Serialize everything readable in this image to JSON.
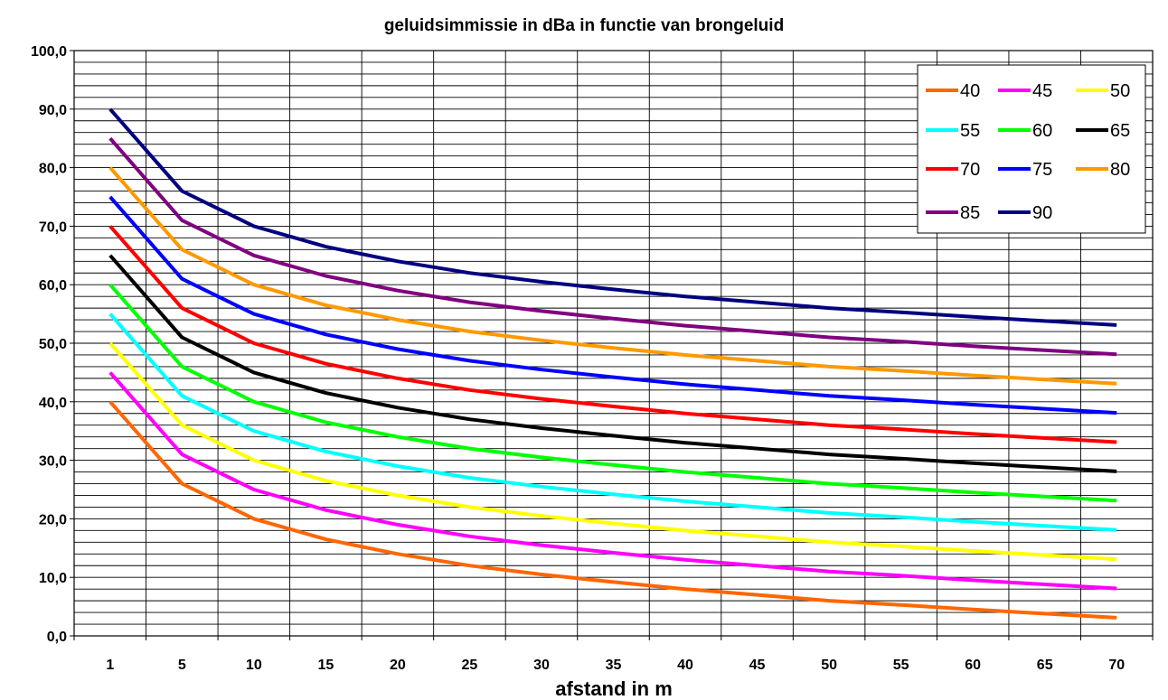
{
  "chart_data": {
    "type": "line",
    "title": "geluidsimmissie in dBa in functie van brongeluid",
    "xlabel": "afstand in m",
    "ylabel": "",
    "ylim": [
      0,
      100
    ],
    "y_tick_labels": [
      "0,0",
      "10,0",
      "20,0",
      "30,0",
      "40,0",
      "50,0",
      "60,0",
      "70,0",
      "80,0",
      "90,0",
      "100,0"
    ],
    "categories": [
      "1",
      "5",
      "10",
      "15",
      "20",
      "25",
      "30",
      "35",
      "40",
      "45",
      "50",
      "55",
      "60",
      "65",
      "70"
    ],
    "grid": true,
    "legend_position": "top-right",
    "series": [
      {
        "name": "40",
        "color": "#FF6600",
        "values": [
          40,
          26,
          20,
          16.5,
          14,
          12,
          10.5,
          9.2,
          8,
          7,
          6,
          5.3,
          4.5,
          3.8,
          3.1
        ]
      },
      {
        "name": "45",
        "color": "#FF00FF",
        "values": [
          45,
          31,
          25,
          21.5,
          19,
          17,
          15.5,
          14.2,
          13,
          12,
          11,
          10.3,
          9.5,
          8.8,
          8.1
        ]
      },
      {
        "name": "50",
        "color": "#FFFF00",
        "values": [
          50,
          36,
          30,
          26.5,
          24,
          22,
          20.5,
          19.2,
          18,
          17,
          16,
          15.3,
          14.5,
          13.8,
          13.1
        ]
      },
      {
        "name": "55",
        "color": "#00FFFF",
        "values": [
          55,
          41,
          35,
          31.5,
          29,
          27,
          25.5,
          24.2,
          23,
          22,
          21,
          20.3,
          19.5,
          18.8,
          18.1
        ]
      },
      {
        "name": "60",
        "color": "#00FF00",
        "values": [
          60,
          46,
          40,
          36.5,
          34,
          32,
          30.5,
          29.2,
          28,
          27,
          26,
          25.3,
          24.5,
          23.8,
          23.1
        ]
      },
      {
        "name": "65",
        "color": "#000000",
        "values": [
          65,
          51,
          45,
          41.5,
          39,
          37,
          35.5,
          34.2,
          33,
          32,
          31,
          30.3,
          29.5,
          28.8,
          28.1
        ]
      },
      {
        "name": "70",
        "color": "#FF0000",
        "values": [
          70,
          56,
          50,
          46.5,
          44,
          42,
          40.5,
          39.2,
          38,
          37,
          36,
          35.3,
          34.5,
          33.8,
          33.1
        ]
      },
      {
        "name": "75",
        "color": "#0000FF",
        "values": [
          75,
          61,
          55,
          51.5,
          49,
          47,
          45.5,
          44.2,
          43,
          42,
          41,
          40.3,
          39.5,
          38.8,
          38.1
        ]
      },
      {
        "name": "80",
        "color": "#FF9900",
        "values": [
          80,
          66,
          60,
          56.5,
          54,
          52,
          50.5,
          49.2,
          48,
          47,
          46,
          45.3,
          44.5,
          43.8,
          43.1
        ]
      },
      {
        "name": "85",
        "color": "#800080",
        "values": [
          85,
          71,
          65,
          61.5,
          59,
          57,
          55.5,
          54.2,
          53,
          52,
          51,
          50.3,
          49.5,
          48.8,
          48.1
        ]
      },
      {
        "name": "90",
        "color": "#000080",
        "values": [
          90,
          76,
          70,
          66.5,
          64,
          62,
          60.5,
          59.2,
          58,
          57,
          56,
          55.3,
          54.5,
          53.8,
          53.1
        ]
      }
    ]
  }
}
